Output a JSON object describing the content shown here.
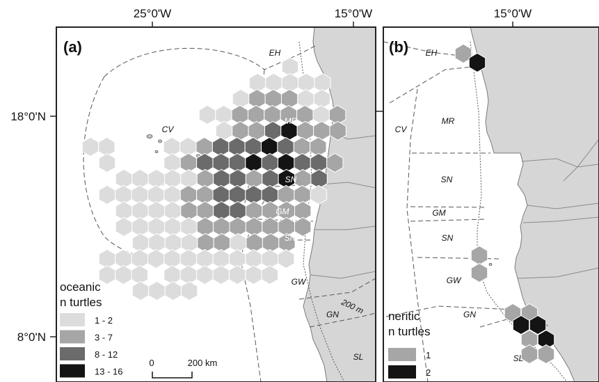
{
  "coords": {
    "top_labels": [
      "25°0'W",
      "15°0'W",
      "15°0'W"
    ],
    "left_labels": [
      "18°0'N",
      "8°0'N"
    ]
  },
  "panel_a": {
    "label": "(a)",
    "regions": [
      {
        "text": "EH",
        "light": false
      },
      {
        "text": "CV",
        "light": false
      },
      {
        "text": "MR",
        "light": true
      },
      {
        "text": "SN",
        "light": true
      },
      {
        "text": "GM",
        "light": true
      },
      {
        "text": "SN",
        "light": true
      },
      {
        "text": "GW",
        "light": false
      },
      {
        "text": "GN",
        "light": false
      },
      {
        "text": "SL",
        "light": false
      }
    ],
    "isobath_label": "200 m",
    "legend": {
      "title_line1": "oceanic",
      "title_line2": "n turtles",
      "items": [
        {
          "label": "1 - 2",
          "color": "#dcdcdc"
        },
        {
          "label": "3 - 7",
          "color": "#a6a6a6"
        },
        {
          "label": "8 - 12",
          "color": "#6b6b6b"
        },
        {
          "label": "13 - 16",
          "color": "#141414"
        }
      ]
    },
    "scalebar": {
      "start": "0",
      "end": "200 km"
    }
  },
  "panel_b": {
    "label": "(b)",
    "regions": [
      {
        "text": "EH"
      },
      {
        "text": "CV"
      },
      {
        "text": "MR"
      },
      {
        "text": "SN"
      },
      {
        "text": "GM"
      },
      {
        "text": "SN"
      },
      {
        "text": "GW"
      },
      {
        "text": "GN"
      },
      {
        "text": "SL"
      }
    ],
    "legend": {
      "title_line1": "neritic",
      "title_line2": "n turtles",
      "items": [
        {
          "label": "1",
          "color": "#a6a6a6"
        },
        {
          "label": "2",
          "color": "#141414"
        }
      ]
    }
  },
  "colors": {
    "land": "#d6d6d6",
    "land_stroke": "#7a7a7a",
    "hex_stroke": "#ffffff",
    "frame": "#222222"
  }
}
